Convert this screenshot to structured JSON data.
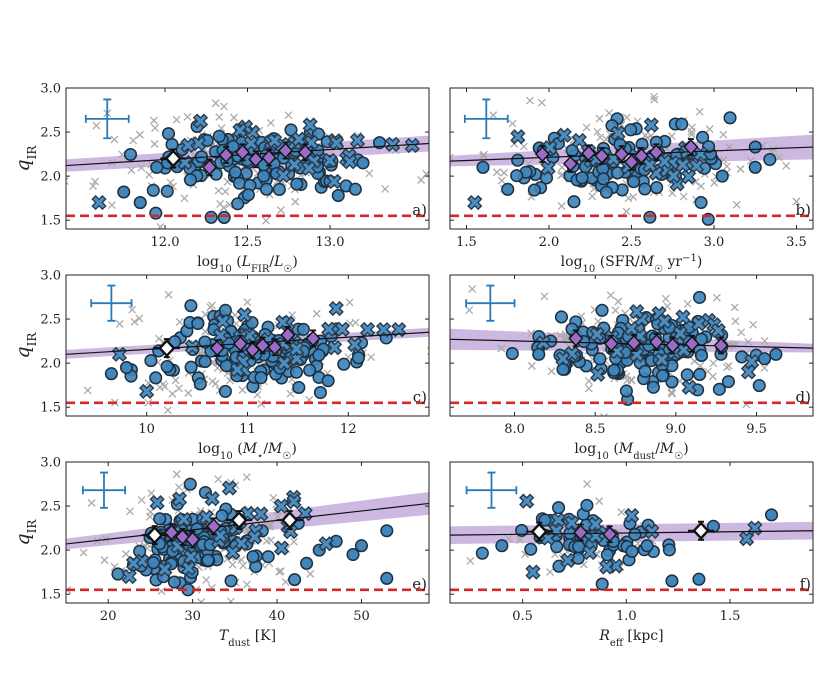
{
  "chart_data": [
    {
      "type": "scatter",
      "tag": "a)",
      "xlabel": "log10(LFIR/L☉)",
      "ylabel": "qIR",
      "xlim": [
        11.4,
        13.6
      ],
      "ylim": [
        1.4,
        3.0
      ],
      "xticks": [
        12.0,
        12.5,
        13.0
      ],
      "xtick_labels": [
        "12.0",
        "12.5",
        "13.0"
      ],
      "yticks": [
        1.5,
        2.0,
        2.5,
        3.0
      ],
      "ytick_labels": [
        "1.5",
        "2.0",
        "2.5",
        "3.0"
      ],
      "fit": {
        "x0": 11.4,
        "y0": 2.12,
        "x1": 13.6,
        "y1": 2.37,
        "band_start": 0.07,
        "band_end": 0.09
      },
      "threshold": 1.55,
      "error_cross": {
        "x": 11.65,
        "y": 2.65,
        "dx": 0.13,
        "dy": 0.22
      },
      "binned_black": [
        {
          "x": 12.05,
          "y": 2.2,
          "err": 0.05
        }
      ],
      "binned_purple": [
        {
          "x": 12.27,
          "y": 2.1
        },
        {
          "x": 12.37,
          "y": 2.24
        },
        {
          "x": 12.47,
          "y": 2.27
        },
        {
          "x": 12.55,
          "y": 2.19
        },
        {
          "x": 12.63,
          "y": 2.21
        },
        {
          "x": 12.73,
          "y": 2.29
        },
        {
          "x": 12.85,
          "y": 2.27
        }
      ],
      "series": {
        "circles_main": {
          "x_center": 12.55,
          "x_spread": 0.32,
          "y_center": 2.15,
          "y_spread": 0.2,
          "count": 120
        },
        "crosses_main": {
          "x_center": 12.6,
          "x_spread": 0.33,
          "y_center": 2.28,
          "y_spread": 0.16,
          "count": 30
        },
        "gray_x": {
          "x_center": 12.45,
          "x_spread": 0.4,
          "y_center": 2.2,
          "y_spread": 0.28,
          "count": 140
        },
        "circles_extra": [
          {
            "x": 11.75,
            "y": 1.82
          },
          {
            "x": 11.95,
            "y": 2.1
          },
          {
            "x": 13.05,
            "y": 1.78
          },
          {
            "x": 13.2,
            "y": 2.15
          },
          {
            "x": 13.3,
            "y": 2.38
          },
          {
            "x": 11.85,
            "y": 1.7
          }
        ],
        "crosses_extra": [
          {
            "x": 11.6,
            "y": 1.7
          },
          {
            "x": 13.38,
            "y": 2.36
          },
          {
            "x": 12.88,
            "y": 2.58
          }
        ]
      }
    },
    {
      "type": "scatter",
      "tag": "b)",
      "xlabel": "log10(SFR/M☉ yr−1)",
      "ylabel": "",
      "xlim": [
        1.4,
        3.6
      ],
      "ylim": [
        1.4,
        3.0
      ],
      "xticks": [
        1.5,
        2.0,
        2.5,
        3.0,
        3.5
      ],
      "xtick_labels": [
        "1.5",
        "2.0",
        "2.5",
        "3.0",
        "3.5"
      ],
      "yticks": [
        1.5,
        2.0,
        2.5,
        3.0
      ],
      "ytick_labels": [
        "",
        "",
        "",
        ""
      ],
      "fit": {
        "x0": 1.4,
        "y0": 2.17,
        "x1": 3.6,
        "y1": 2.33,
        "band_start": 0.06,
        "band_end": 0.14
      },
      "threshold": 1.55,
      "error_cross": {
        "x": 1.62,
        "y": 2.65,
        "dx": 0.13,
        "dy": 0.22
      },
      "binned_black": [],
      "binned_purple": [
        {
          "x": 1.96,
          "y": 2.25
        },
        {
          "x": 2.13,
          "y": 2.14
        },
        {
          "x": 2.24,
          "y": 2.26
        },
        {
          "x": 2.32,
          "y": 2.23
        },
        {
          "x": 2.44,
          "y": 2.25
        },
        {
          "x": 2.5,
          "y": 2.16
        },
        {
          "x": 2.56,
          "y": 2.23
        },
        {
          "x": 2.65,
          "y": 2.27
        },
        {
          "x": 2.86,
          "y": 2.33
        }
      ],
      "series": {
        "circles_main": {
          "x_center": 2.45,
          "x_spread": 0.35,
          "y_center": 2.15,
          "y_spread": 0.2,
          "count": 110
        },
        "crosses_main": {
          "x_center": 2.45,
          "x_spread": 0.3,
          "y_center": 2.22,
          "y_spread": 0.18,
          "count": 25
        },
        "gray_x": {
          "x_center": 2.4,
          "x_spread": 0.45,
          "y_center": 2.2,
          "y_spread": 0.28,
          "count": 130
        },
        "circles_extra": [
          {
            "x": 1.6,
            "y": 2.1
          },
          {
            "x": 1.75,
            "y": 1.85
          },
          {
            "x": 3.05,
            "y": 2.0
          },
          {
            "x": 3.25,
            "y": 2.1
          },
          {
            "x": 3.25,
            "y": 2.33
          }
        ],
        "crosses_extra": [
          {
            "x": 1.55,
            "y": 1.7
          },
          {
            "x": 2.62,
            "y": 2.58
          }
        ]
      }
    },
    {
      "type": "scatter",
      "tag": "c)",
      "xlabel": "log10(M⋆/M☉)",
      "ylabel": "qIR",
      "xlim": [
        9.2,
        12.8
      ],
      "ylim": [
        1.4,
        3.0
      ],
      "xticks": [
        10,
        11,
        12
      ],
      "xtick_labels": [
        "10",
        "11",
        "12"
      ],
      "yticks": [
        1.5,
        2.0,
        2.5,
        3.0
      ],
      "ytick_labels": [
        "1.5",
        "2.0",
        "2.5",
        "3.0"
      ],
      "fit": {
        "x0": 9.2,
        "y0": 2.1,
        "x1": 12.8,
        "y1": 2.35,
        "band_start": 0.05,
        "band_end": 0.05
      },
      "threshold": 1.55,
      "error_cross": {
        "x": 9.65,
        "y": 2.68,
        "dx": 0.2,
        "dy": 0.2
      },
      "binned_black": [
        {
          "x": 10.2,
          "y": 2.17,
          "err": 0.05
        }
      ],
      "binned_purple": [
        {
          "x": 10.7,
          "y": 2.17
        },
        {
          "x": 10.93,
          "y": 2.22
        },
        {
          "x": 11.05,
          "y": 2.15
        },
        {
          "x": 11.15,
          "y": 2.2
        },
        {
          "x": 11.27,
          "y": 2.18
        },
        {
          "x": 11.4,
          "y": 2.32
        },
        {
          "x": 11.65,
          "y": 2.28
        }
      ],
      "series": {
        "circles_main": {
          "x_center": 11.05,
          "x_spread": 0.45,
          "y_center": 2.1,
          "y_spread": 0.22,
          "count": 130
        },
        "crosses_main": {
          "x_center": 11.2,
          "x_spread": 0.45,
          "y_center": 2.25,
          "y_spread": 0.18,
          "count": 28
        },
        "gray_x": {
          "x_center": 10.9,
          "x_spread": 0.6,
          "y_center": 2.15,
          "y_spread": 0.3,
          "count": 140
        },
        "circles_extra": [
          {
            "x": 9.65,
            "y": 1.88
          },
          {
            "x": 9.8,
            "y": 1.95
          },
          {
            "x": 12.1,
            "y": 2.06
          },
          {
            "x": 11.8,
            "y": 1.8
          }
        ],
        "crosses_extra": [
          {
            "x": 9.73,
            "y": 2.1
          },
          {
            "x": 10.0,
            "y": 1.68
          },
          {
            "x": 11.88,
            "y": 2.62
          },
          {
            "x": 12.35,
            "y": 2.38
          },
          {
            "x": 12.5,
            "y": 2.38
          }
        ]
      }
    },
    {
      "type": "scatter",
      "tag": "d)",
      "xlabel": "log10(Mdust/M☉)",
      "ylabel": "",
      "xlim": [
        7.6,
        9.85
      ],
      "ylim": [
        1.4,
        3.0
      ],
      "xticks": [
        8.0,
        8.5,
        9.0,
        9.5
      ],
      "xtick_labels": [
        "8.0",
        "8.5",
        "9.0",
        "9.5"
      ],
      "yticks": [
        1.5,
        2.0,
        2.5,
        3.0
      ],
      "ytick_labels": [
        "",
        "",
        "",
        ""
      ],
      "fit": {
        "x0": 7.6,
        "y0": 2.27,
        "x1": 9.85,
        "y1": 2.17,
        "band_start": 0.12,
        "band_end": 0.05
      },
      "threshold": 1.55,
      "error_cross": {
        "x": 7.85,
        "y": 2.68,
        "dx": 0.15,
        "dy": 0.2
      },
      "binned_black": [],
      "binned_purple": [
        {
          "x": 8.38,
          "y": 2.28
        },
        {
          "x": 8.6,
          "y": 2.22
        },
        {
          "x": 8.74,
          "y": 2.23
        },
        {
          "x": 8.88,
          "y": 2.24
        },
        {
          "x": 8.98,
          "y": 2.2
        },
        {
          "x": 9.1,
          "y": 2.22
        },
        {
          "x": 9.28,
          "y": 2.2
        }
      ],
      "series": {
        "circles_main": {
          "x_center": 8.85,
          "x_spread": 0.32,
          "y_center": 2.12,
          "y_spread": 0.2,
          "count": 130
        },
        "crosses_main": {
          "x_center": 8.85,
          "x_spread": 0.3,
          "y_center": 2.25,
          "y_spread": 0.18,
          "count": 26
        },
        "gray_x": {
          "x_center": 8.8,
          "x_spread": 0.38,
          "y_center": 2.2,
          "y_spread": 0.28,
          "count": 140
        },
        "circles_extra": [
          {
            "x": 8.15,
            "y": 2.1
          },
          {
            "x": 9.55,
            "y": 2.05
          },
          {
            "x": 9.62,
            "y": 2.1
          }
        ],
        "crosses_extra": [
          {
            "x": 8.3,
            "y": 2.05
          },
          {
            "x": 9.45,
            "y": 1.9
          }
        ]
      }
    },
    {
      "type": "scatter",
      "tag": "e)",
      "xlabel": "Tdust [K]",
      "ylabel": "qIR",
      "xlim": [
        15,
        58
      ],
      "ylim": [
        1.4,
        3.0
      ],
      "xticks": [
        20,
        30,
        40,
        50
      ],
      "xtick_labels": [
        "20",
        "30",
        "40",
        "50"
      ],
      "yticks": [
        1.5,
        2.0,
        2.5,
        3.0
      ],
      "ytick_labels": [
        "1.5",
        "2.0",
        "2.5",
        "3.0"
      ],
      "fit": {
        "x0": 15,
        "y0": 2.07,
        "x1": 58,
        "y1": 2.53,
        "band_start": 0.06,
        "band_end": 0.13
      },
      "threshold": 1.55,
      "error_cross": {
        "x": 19.5,
        "y": 2.68,
        "dx": 2.5,
        "dy": 0.2
      },
      "binned_black": [
        {
          "x": 25.5,
          "y": 2.17,
          "err": 0.05
        },
        {
          "x": 35.5,
          "y": 2.34,
          "err": 0.05
        },
        {
          "x": 41.5,
          "y": 2.34,
          "err": 0.05
        }
      ],
      "binned_purple": [
        {
          "x": 27.5,
          "y": 2.2
        },
        {
          "x": 28.8,
          "y": 2.15
        },
        {
          "x": 30.0,
          "y": 2.12
        },
        {
          "x": 32.5,
          "y": 2.27
        }
      ],
      "series": {
        "circles_main": {
          "x_center": 30.5,
          "x_spread": 4.5,
          "y_center": 2.08,
          "y_spread": 0.2,
          "count": 120
        },
        "crosses_main": {
          "x_center": 33,
          "x_spread": 6,
          "y_center": 2.25,
          "y_spread": 0.2,
          "count": 28
        },
        "gray_x": {
          "x_center": 31,
          "x_spread": 6,
          "y_center": 2.15,
          "y_spread": 0.3,
          "count": 130
        },
        "circles_extra": [
          {
            "x": 47,
            "y": 2.1
          },
          {
            "x": 49,
            "y": 1.95
          },
          {
            "x": 50,
            "y": 2.05
          },
          {
            "x": 53,
            "y": 1.68
          },
          {
            "x": 53,
            "y": 2.22
          },
          {
            "x": 43.5,
            "y": 1.85
          },
          {
            "x": 45,
            "y": 2.0
          }
        ],
        "crosses_extra": [
          {
            "x": 22.5,
            "y": 1.7
          },
          {
            "x": 23,
            "y": 1.85
          },
          {
            "x": 40.5,
            "y": 2.5
          },
          {
            "x": 42,
            "y": 2.55
          }
        ]
      }
    },
    {
      "type": "scatter",
      "tag": "f)",
      "xlabel": "Reff [kpc]",
      "ylabel": "",
      "xlim": [
        0.15,
        1.9
      ],
      "ylim": [
        1.4,
        3.0
      ],
      "xticks": [
        0.5,
        1.0,
        1.5
      ],
      "xtick_labels": [
        "0.5",
        "1.0",
        "1.5"
      ],
      "yticks": [
        1.5,
        2.0,
        2.5,
        3.0
      ],
      "ytick_labels": [
        "",
        "",
        "",
        ""
      ],
      "fit": {
        "x0": 0.15,
        "y0": 2.17,
        "x1": 1.9,
        "y1": 2.22,
        "band_start": 0.1,
        "band_end": 0.1
      },
      "threshold": 1.55,
      "error_cross": {
        "x": 0.35,
        "y": 2.68,
        "dx": 0.12,
        "dy": 0.2
      },
      "binned_black": [
        {
          "x": 0.58,
          "y": 2.21,
          "err": 0.05
        },
        {
          "x": 1.36,
          "y": 2.22,
          "err": 0.05
        }
      ],
      "binned_purple": [
        {
          "x": 0.78,
          "y": 2.2
        },
        {
          "x": 0.92,
          "y": 2.18
        }
      ],
      "series": {
        "circles_main": {
          "x_center": 0.78,
          "x_spread": 0.16,
          "y_center": 2.12,
          "y_spread": 0.16,
          "count": 55
        },
        "crosses_main": {
          "x_center": 0.8,
          "x_spread": 0.15,
          "y_center": 2.15,
          "y_spread": 0.18,
          "count": 14
        },
        "gray_x": {
          "x_center": 0.8,
          "x_spread": 0.2,
          "y_center": 2.15,
          "y_spread": 0.2,
          "count": 40
        },
        "circles_extra": [
          {
            "x": 1.22,
            "y": 1.65
          },
          {
            "x": 1.35,
            "y": 1.67
          },
          {
            "x": 1.42,
            "y": 2.27
          },
          {
            "x": 1.7,
            "y": 2.4
          },
          {
            "x": 0.4,
            "y": 2.05
          },
          {
            "x": 1.1,
            "y": 2.05
          }
        ],
        "crosses_extra": [
          {
            "x": 1.58,
            "y": 2.13
          },
          {
            "x": 1.62,
            "y": 2.25
          },
          {
            "x": 0.55,
            "y": 1.75
          }
        ]
      }
    }
  ]
}
